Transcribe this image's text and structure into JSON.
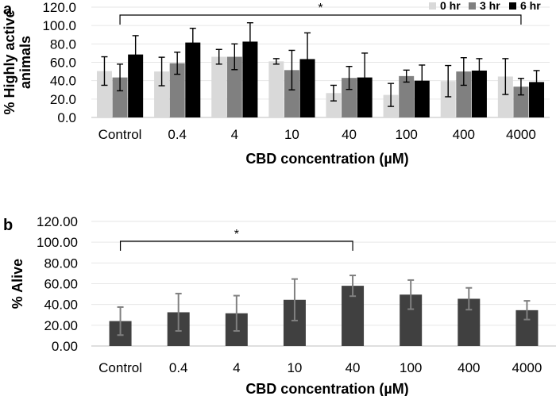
{
  "chart_data": [
    {
      "panel": "a",
      "type": "bar",
      "categories": [
        "Control",
        "0.4",
        "4",
        "10",
        "40",
        "100",
        "400",
        "4000"
      ],
      "series": [
        {
          "name": "0 hr",
          "color": "#d9d9d9",
          "values": [
            50.5,
            50,
            66,
            61,
            26.5,
            24.5,
            39.5,
            44.5
          ],
          "errors": [
            15.5,
            15.5,
            8,
            3,
            8.5,
            12.5,
            17,
            19.5
          ]
        },
        {
          "name": "3 hr",
          "color": "#808080",
          "values": [
            43.5,
            59,
            66,
            51.5,
            43,
            45,
            50,
            33.5
          ],
          "errors": [
            14.5,
            12,
            14,
            21.5,
            12.5,
            6.5,
            15,
            9
          ]
        },
        {
          "name": "6 hr",
          "color": "#000000",
          "values": [
            68.5,
            81.5,
            82.5,
            63.5,
            43.5,
            40,
            51,
            38.5
          ],
          "errors": [
            20.5,
            15.5,
            20.5,
            28.5,
            26.5,
            17,
            13,
            12.5
          ]
        }
      ],
      "yticks": [
        "0.0",
        "20.0",
        "40.0",
        "60.0",
        "80.0",
        "100.0",
        "120.0"
      ],
      "ylim": [
        0,
        120
      ],
      "ylabel_lines": [
        "% Highly active",
        "animals"
      ],
      "xlabel": "CBD concentration (µM)",
      "significance": {
        "from": "Control",
        "to": "4000",
        "label": "*"
      },
      "legend": "top-right",
      "grid": true
    },
    {
      "panel": "b",
      "type": "bar",
      "categories": [
        "Control",
        "0.4",
        "4",
        "10",
        "40",
        "100",
        "400",
        "4000"
      ],
      "series": [
        {
          "name": "% Alive",
          "color": "#404040",
          "values": [
            24,
            32.5,
            31.5,
            44.5,
            58,
            49.5,
            45.5,
            34.5
          ],
          "errors": [
            13.5,
            18,
            17,
            20,
            10,
            14,
            10.5,
            9
          ]
        }
      ],
      "yticks": [
        "0.00",
        "20.00",
        "40.00",
        "60.00",
        "80.00",
        "100.00",
        "120.00"
      ],
      "ylim": [
        0,
        120
      ],
      "ylabel_lines": [
        "% Alive"
      ],
      "xlabel": "CBD concentration (µM)",
      "significance": {
        "from": "Control",
        "to": "40",
        "label": "*"
      },
      "grid": true
    }
  ]
}
